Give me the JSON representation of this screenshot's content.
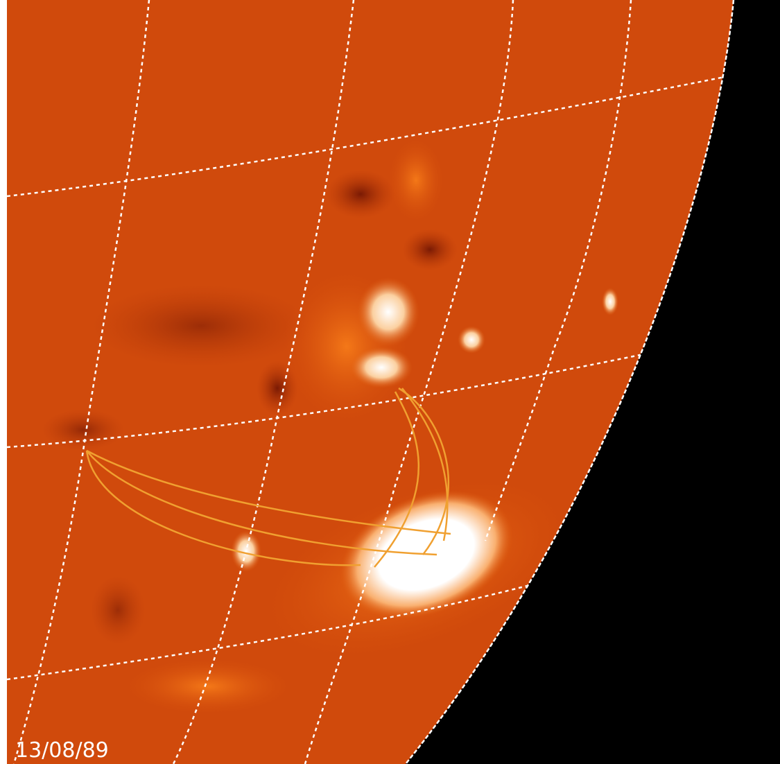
{
  "image": {
    "date_label": "13/08/89"
  }
}
